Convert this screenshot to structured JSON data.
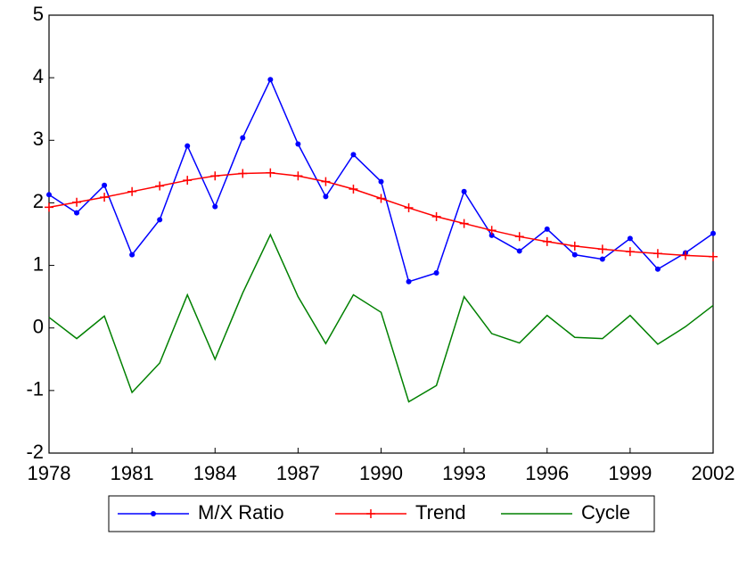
{
  "chart_data": {
    "type": "line",
    "x": [
      1978,
      1979,
      1980,
      1981,
      1982,
      1983,
      1984,
      1985,
      1986,
      1987,
      1988,
      1989,
      1990,
      1991,
      1992,
      1993,
      1994,
      1995,
      1996,
      1997,
      1998,
      1999,
      2000,
      2001,
      2002
    ],
    "xlim": [
      1978,
      2002
    ],
    "xticks": [
      1978,
      1981,
      1984,
      1987,
      1990,
      1993,
      1996,
      1999,
      2002
    ],
    "ylim": [
      -2,
      5
    ],
    "yticks": [
      -2,
      -1,
      0,
      1,
      2,
      3,
      4,
      5
    ],
    "legend": "bottom",
    "series": [
      {
        "name": "M/X Ratio",
        "color": "#0000ff",
        "marker": "dot",
        "values": [
          2.13,
          1.84,
          2.28,
          1.17,
          1.73,
          2.91,
          1.94,
          3.04,
          3.97,
          2.94,
          2.1,
          2.77,
          2.34,
          0.74,
          0.88,
          2.18,
          1.48,
          1.23,
          1.58,
          1.17,
          1.1,
          1.43,
          0.94,
          1.2,
          1.51
        ]
      },
      {
        "name": "Trend",
        "color": "#ff0000",
        "marker": "plus",
        "values": [
          1.93,
          2.01,
          2.09,
          2.18,
          2.27,
          2.36,
          2.43,
          2.47,
          2.48,
          2.43,
          2.34,
          2.22,
          2.07,
          1.92,
          1.78,
          1.67,
          1.56,
          1.46,
          1.38,
          1.31,
          1.26,
          1.22,
          1.19,
          1.16,
          1.14
        ]
      },
      {
        "name": "Cycle",
        "color": "#008000",
        "marker": "none",
        "values": [
          0.17,
          -0.17,
          0.19,
          -1.03,
          -0.56,
          0.53,
          -0.5,
          0.56,
          1.49,
          0.5,
          -0.25,
          0.53,
          0.25,
          -1.18,
          -0.92,
          0.5,
          -0.09,
          -0.24,
          0.2,
          -0.15,
          -0.17,
          0.2,
          -0.26,
          0.02,
          0.36
        ]
      }
    ]
  }
}
